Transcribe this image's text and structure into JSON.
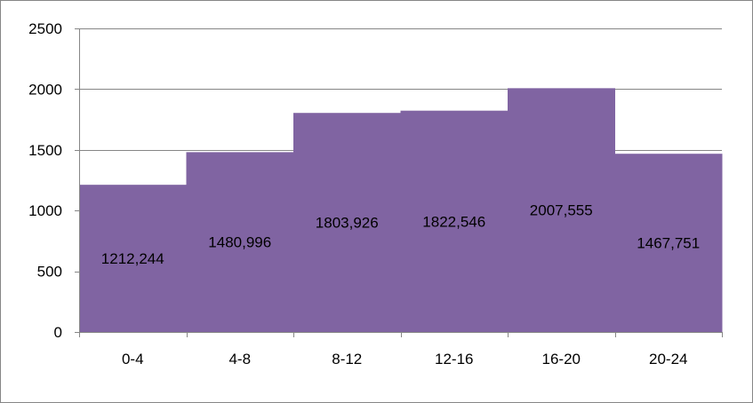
{
  "chart_data": {
    "type": "bar",
    "categories": [
      "0-4",
      "4-8",
      "8-12",
      "12-16",
      "16-20",
      "20-24"
    ],
    "values": [
      1212.244,
      1480.996,
      1803.926,
      1822.546,
      2007.555,
      1467.751
    ],
    "data_labels": [
      "1212,244",
      "1480,996",
      "1803,926",
      "1822,546",
      "2007,555",
      "1467,751"
    ],
    "title": "",
    "xlabel": "",
    "ylabel": "",
    "ylim": [
      0,
      2500
    ],
    "yticks": [
      0,
      500,
      1000,
      1500,
      2000,
      2500
    ],
    "ytick_labels": [
      "0",
      "500",
      "1000",
      "1500",
      "2000",
      "2500"
    ],
    "grid": true,
    "legend": "none",
    "bar_gap": 0,
    "colors": {
      "bar": "#8064A2",
      "grid": "#868686",
      "axis": "#868686"
    }
  }
}
